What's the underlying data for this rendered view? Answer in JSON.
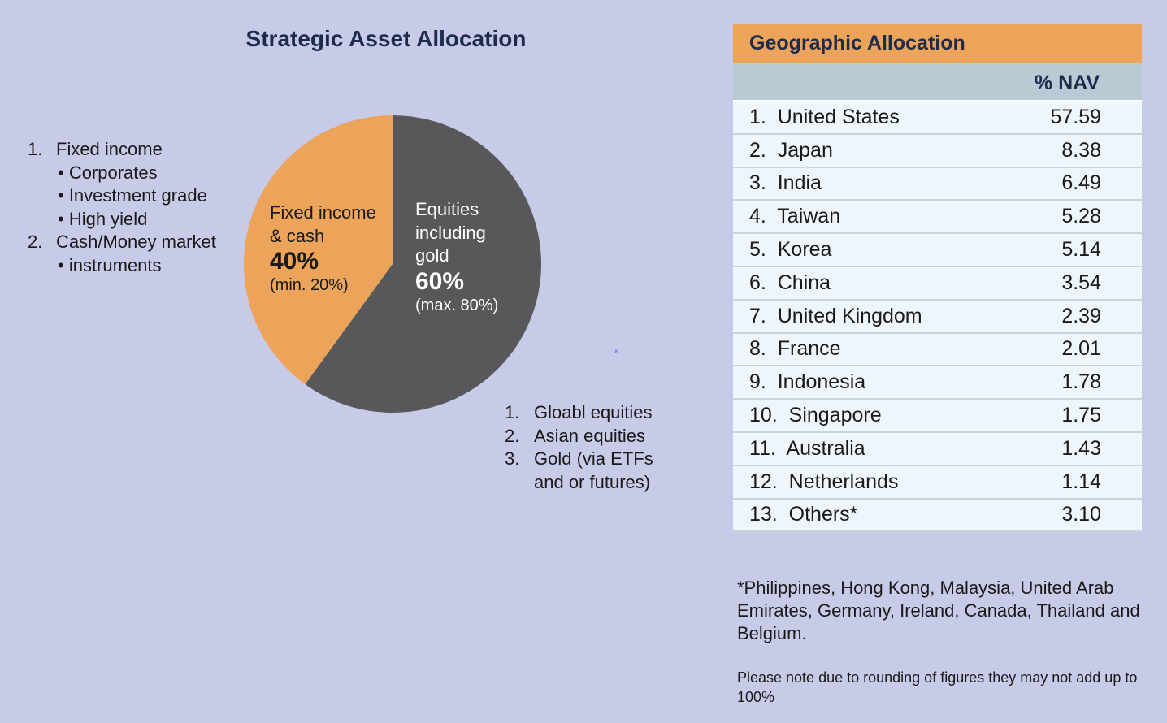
{
  "title": "Strategic Asset Allocation",
  "left_list": {
    "item1": "Fixed income",
    "item1_num": "1.",
    "sub1": "• Corporates",
    "sub2": "• Investment grade",
    "sub3": "• High yield",
    "item2": "Cash/Money market",
    "item2_num": "2.",
    "sub4": "• instruments"
  },
  "right_list": {
    "n1": "1.",
    "t1": "Gloabl equities",
    "n2": "2.",
    "t2": "Asian equities",
    "n3": "3.",
    "t3": "Gold (via ETFs",
    "t3b": "and or futures)"
  },
  "marker": "×",
  "chart_data": {
    "type": "pie",
    "slices": [
      {
        "label_line1": "Fixed income",
        "label_line2": "& cash",
        "label_line3": "",
        "pct_text": "40%",
        "note": "(min. 20%)",
        "value": 40,
        "color": "#eca35a"
      },
      {
        "label_line1": "Equities",
        "label_line2": "including",
        "label_line3": "gold",
        "pct_text": "60%",
        "note": "(max. 80%)",
        "value": 60,
        "color": "#58585b"
      }
    ]
  },
  "geo": {
    "title": "Geographic Allocation",
    "col_header": "% NAV",
    "rows": [
      {
        "country": "1.  United States",
        "value": "57.59"
      },
      {
        "country": "2.  Japan",
        "value": "8.38"
      },
      {
        "country": "3.  India",
        "value": "6.49"
      },
      {
        "country": "4.  Taiwan",
        "value": "5.28"
      },
      {
        "country": "5.  Korea",
        "value": "5.14"
      },
      {
        "country": "6.  China",
        "value": "3.54"
      },
      {
        "country": "7.  United Kingdom",
        "value": "2.39"
      },
      {
        "country": "8.  France",
        "value": "2.01"
      },
      {
        "country": "9.  Indonesia",
        "value": "1.78"
      },
      {
        "country": "10.  Singapore",
        "value": "1.75"
      },
      {
        "country": "11.  Australia",
        "value": "1.43"
      },
      {
        "country": "12.  Netherlands",
        "value": "1.14"
      },
      {
        "country": "13.  Others*",
        "value": "3.10"
      }
    ]
  },
  "footnote": "*Philippines, Hong Kong, Malaysia, United Arab Emirates, Germany, Ireland, Canada, Thailand and Belgium.",
  "note": "Please note due to rounding of figures they may not add up to 100%"
}
